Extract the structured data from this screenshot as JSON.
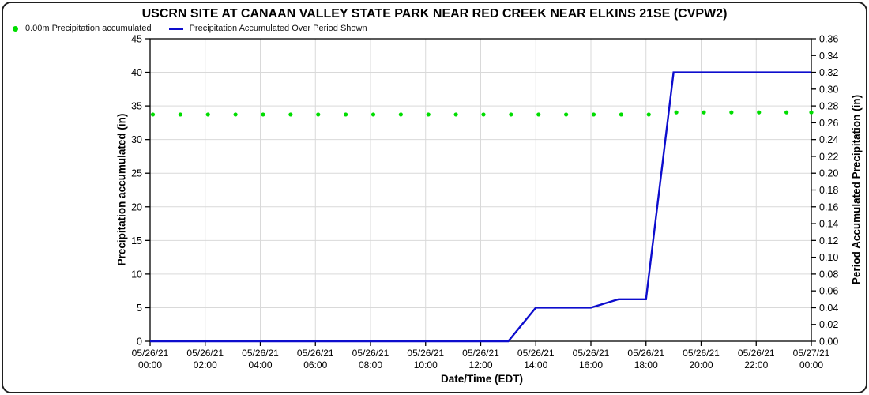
{
  "header": {
    "title": "USCRN SITE AT CANAAN VALLEY STATE PARK NEAR RED CREEK NEAR ELKINS 21SE (CVPW2)"
  },
  "legend": {
    "items": [
      {
        "label": "0.00m Precipitation accumulated",
        "marker": "dot",
        "color": "#00dd00"
      },
      {
        "label": "Precipitation Accumulated Over Period Shown",
        "marker": "line",
        "color": "#0d0dcd"
      }
    ]
  },
  "colors": {
    "green_series": "#00dd00",
    "blue_series": "#0d0dcd",
    "gridline": "#d9d9d9",
    "axis": "#000000",
    "background": "#ffffff"
  },
  "chart_data": {
    "type": "line",
    "title": "USCRN SITE AT CANAAN VALLEY STATE PARK NEAR RED CREEK NEAR ELKINS 21SE (CVPW2)",
    "xlabel": "Date/Time (EDT)",
    "ylabel_left": "Precipitation accumulated (in)",
    "ylabel_right": "Period Accumulated Precipitation (in)",
    "xlim_hours": [
      0,
      24
    ],
    "ylim_left": [
      0,
      45
    ],
    "ylim_right": [
      0.0,
      0.36
    ],
    "grid": true,
    "legend_position": "top-left",
    "left_ticks": [
      0,
      5,
      10,
      15,
      20,
      25,
      30,
      35,
      40,
      45
    ],
    "right_ticks": [
      0.0,
      0.02,
      0.04,
      0.06,
      0.08,
      0.1,
      0.12,
      0.14,
      0.16,
      0.18,
      0.2,
      0.22,
      0.24,
      0.26,
      0.28,
      0.3,
      0.32,
      0.34,
      0.36
    ],
    "x_ticks": [
      {
        "hour": 0,
        "date": "05/26/21",
        "time": "00:00"
      },
      {
        "hour": 2,
        "date": "05/26/21",
        "time": "02:00"
      },
      {
        "hour": 4,
        "date": "05/26/21",
        "time": "04:00"
      },
      {
        "hour": 6,
        "date": "05/26/21",
        "time": "06:00"
      },
      {
        "hour": 8,
        "date": "05/26/21",
        "time": "08:00"
      },
      {
        "hour": 10,
        "date": "05/26/21",
        "time": "10:00"
      },
      {
        "hour": 12,
        "date": "05/26/21",
        "time": "12:00"
      },
      {
        "hour": 14,
        "date": "05/26/21",
        "time": "14:00"
      },
      {
        "hour": 16,
        "date": "05/26/21",
        "time": "16:00"
      },
      {
        "hour": 18,
        "date": "05/26/21",
        "time": "18:00"
      },
      {
        "hour": 20,
        "date": "05/26/21",
        "time": "20:00"
      },
      {
        "hour": 22,
        "date": "05/26/21",
        "time": "22:00"
      },
      {
        "hour": 24,
        "date": "05/27/21",
        "time": "00:00"
      }
    ],
    "series": [
      {
        "name": "0.00m Precipitation accumulated",
        "style": "scatter",
        "axis": "left",
        "color": "#00dd00",
        "points": [
          [
            0.1,
            33.73
          ],
          [
            1.1,
            33.73
          ],
          [
            2.1,
            33.73
          ],
          [
            3.1,
            33.73
          ],
          [
            4.1,
            33.73
          ],
          [
            5.1,
            33.73
          ],
          [
            6.1,
            33.73
          ],
          [
            7.1,
            33.73
          ],
          [
            8.1,
            33.73
          ],
          [
            9.1,
            33.73
          ],
          [
            10.1,
            33.73
          ],
          [
            11.1,
            33.73
          ],
          [
            12.1,
            33.73
          ],
          [
            13.1,
            33.73
          ],
          [
            14.1,
            33.73
          ],
          [
            15.1,
            33.73
          ],
          [
            16.1,
            33.73
          ],
          [
            17.1,
            33.73
          ],
          [
            18.1,
            33.73
          ],
          [
            19.1,
            34.05
          ],
          [
            20.1,
            34.05
          ],
          [
            21.1,
            34.05
          ],
          [
            22.1,
            34.05
          ],
          [
            23.1,
            34.05
          ],
          [
            24.0,
            34.05
          ]
        ]
      },
      {
        "name": "Precipitation Accumulated Over Period Shown",
        "style": "line",
        "axis": "right",
        "color": "#0d0dcd",
        "points": [
          [
            0,
            0.0
          ],
          [
            13,
            0.0
          ],
          [
            14,
            0.04
          ],
          [
            16,
            0.04
          ],
          [
            17,
            0.05
          ],
          [
            18,
            0.05
          ],
          [
            19,
            0.32
          ],
          [
            24,
            0.32
          ]
        ]
      }
    ]
  }
}
